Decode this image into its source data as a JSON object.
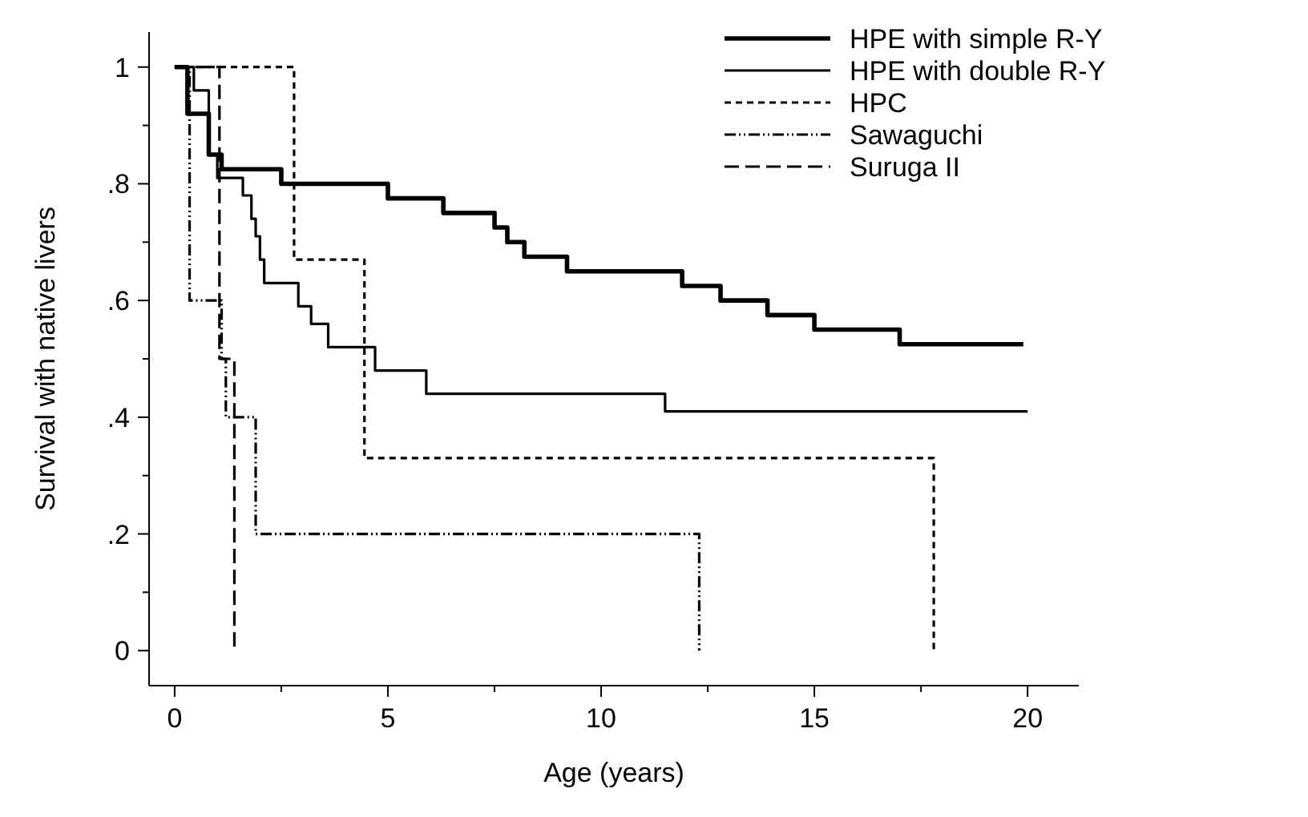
{
  "chart_data": {
    "type": "step",
    "xlabel": "Age (years)",
    "ylabel": "Survival with native livers",
    "xlim": [
      -0.6,
      21.2
    ],
    "ylim": [
      -0.06,
      1.06
    ],
    "xticks": [
      0,
      {
        "value": 2.5,
        "label": null
      },
      5,
      {
        "value": 7.5,
        "label": null
      },
      10,
      {
        "value": 12.5,
        "label": null
      },
      15,
      {
        "value": 17.5,
        "label": null
      },
      20
    ],
    "yticks": [
      0,
      {
        "value": 0.1,
        "label": null
      },
      {
        "value": 0.2,
        "label": ".2"
      },
      {
        "value": 0.3,
        "label": null
      },
      {
        "value": 0.4,
        "label": ".4"
      },
      {
        "value": 0.5,
        "label": null
      },
      {
        "value": 0.6,
        "label": ".6"
      },
      {
        "value": 0.7,
        "label": null
      },
      {
        "value": 0.8,
        "label": ".8"
      },
      {
        "value": 0.9,
        "label": null
      },
      1
    ],
    "grid": false,
    "legend": "top right",
    "marker": "none",
    "series": [
      {
        "name": "HPE with simple R-Y",
        "color": "#000000",
        "line_style": "solid",
        "x": [
          0,
          0.3,
          0.8,
          1.1,
          2.5,
          5.0,
          6.3,
          7.5,
          7.8,
          8.2,
          9.2,
          11.9,
          12.8,
          13.9,
          15.0,
          17.0,
          19.9
        ],
        "values": [
          1,
          0.92,
          0.85,
          0.825,
          0.8,
          0.775,
          0.75,
          0.725,
          0.7,
          0.675,
          0.65,
          0.625,
          0.6,
          0.575,
          0.55,
          0.525,
          0.525
        ]
      },
      {
        "name": "HPE with double R-Y",
        "color": "#000000",
        "line_style": "solid",
        "x": [
          0,
          0.45,
          0.8,
          1.0,
          1.6,
          1.8,
          1.9,
          2.0,
          2.1,
          2.9,
          3.2,
          3.6,
          4.7,
          5.9,
          11.5,
          20.0
        ],
        "values": [
          1,
          0.96,
          0.85,
          0.81,
          0.78,
          0.74,
          0.71,
          0.67,
          0.63,
          0.59,
          0.56,
          0.52,
          0.48,
          0.44,
          0.41,
          0.41
        ]
      },
      {
        "name": "HPC",
        "color": "#000000",
        "line_style": "dashed",
        "x": [
          0,
          2.8,
          4.45,
          17.8
        ],
        "values": [
          1,
          0.67,
          0.33,
          0
        ]
      },
      {
        "name": "Sawaguchi",
        "color": "#000000",
        "line_style": "dotted",
        "x": [
          0,
          0.35,
          1.1,
          1.2,
          1.9,
          12.3
        ],
        "values": [
          1,
          0.6,
          0.5,
          0.4,
          0.2,
          0
        ]
      },
      {
        "name": "Suruga II",
        "color": "#000000",
        "line_style": "dashed",
        "x": [
          0,
          1.05,
          1.4
        ],
        "values": [
          1,
          0.5,
          0
        ]
      }
    ]
  }
}
